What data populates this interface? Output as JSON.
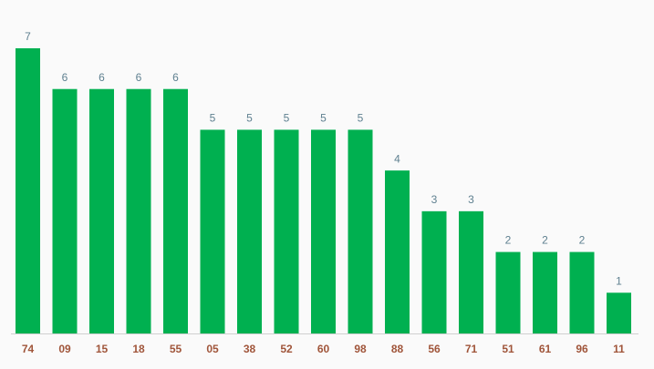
{
  "chart_data": {
    "type": "bar",
    "categories": [
      "74",
      "09",
      "15",
      "18",
      "55",
      "05",
      "38",
      "52",
      "60",
      "98",
      "88",
      "56",
      "71",
      "51",
      "61",
      "96",
      "11"
    ],
    "values": [
      7,
      6,
      6,
      6,
      6,
      5,
      5,
      5,
      5,
      5,
      4,
      3,
      3,
      2,
      2,
      2,
      1
    ],
    "color": "#00b050"
  }
}
